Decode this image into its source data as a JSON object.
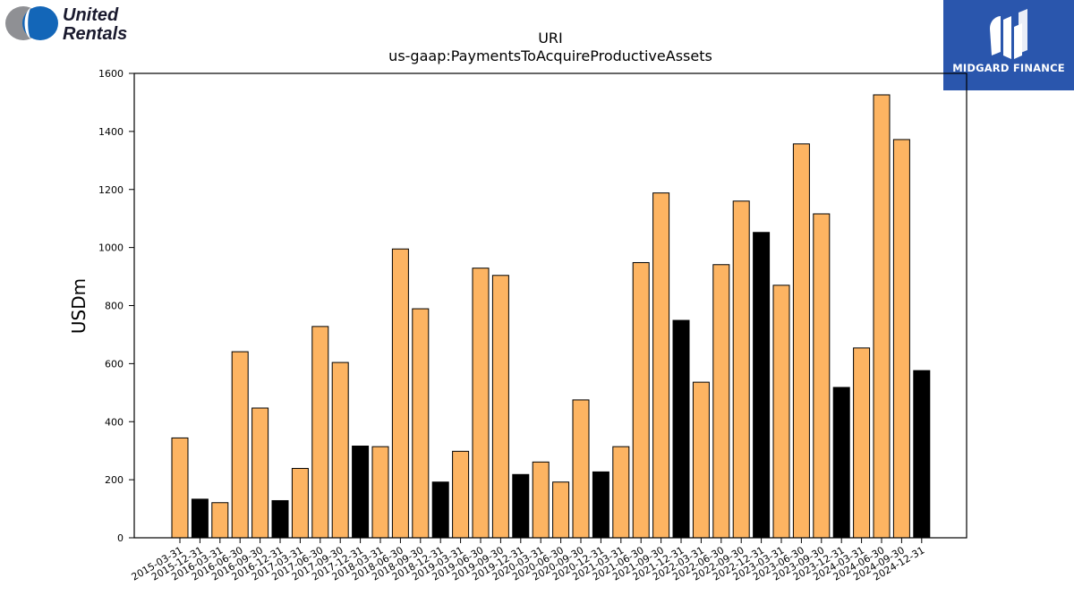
{
  "logos": {
    "left": {
      "line1": "United",
      "line2": "Rentals",
      "colors": {
        "gray": "#8f9094",
        "blue": "#1366b8",
        "text": "#1a1a2e"
      }
    },
    "right": {
      "text": "MIDGARD FINANCE",
      "background": "#2a56ad"
    }
  },
  "chart_data": {
    "type": "bar",
    "title": "URI",
    "subtitle": "us-gaap:PaymentsToAcquireProductiveAssets",
    "xlabel": "",
    "ylabel": "USDm",
    "ylim": [
      0,
      1600
    ],
    "yticks": [
      0,
      200,
      400,
      600,
      800,
      1000,
      1200,
      1400,
      1600
    ],
    "grid": false,
    "legend": "none",
    "colors": {
      "quarter": "#fdb462",
      "year_end": "#000000",
      "edge": "#000000"
    },
    "categories": [
      "2015-03-31",
      "2015-12-31",
      "2016-03-31",
      "2016-06-30",
      "2016-09-30",
      "2016-12-31",
      "2017-03-31",
      "2017-06-30",
      "2017-09-30",
      "2017-12-31",
      "2018-03-31",
      "2018-06-30",
      "2018-09-30",
      "2018-12-31",
      "2019-03-31",
      "2019-06-30",
      "2019-09-30",
      "2019-12-31",
      "2020-03-31",
      "2020-06-30",
      "2020-09-30",
      "2020-12-31",
      "2021-03-31",
      "2021-06-30",
      "2021-09-30",
      "2021-12-31",
      "2022-03-31",
      "2022-06-30",
      "2022-09-30",
      "2022-12-31",
      "2023-03-31",
      "2023-06-30",
      "2023-09-30",
      "2023-12-31",
      "2024-03-31",
      "2024-06-30",
      "2024-09-30",
      "2024-12-31"
    ],
    "values": [
      344,
      133,
      121,
      641,
      447,
      128,
      239,
      728,
      604,
      316,
      314,
      995,
      789,
      192,
      298,
      929,
      904,
      218,
      261,
      192,
      475,
      227,
      314,
      948,
      1188,
      749,
      536,
      941,
      1160,
      1052,
      870,
      1357,
      1116,
      518,
      654,
      1526,
      1372,
      576
    ],
    "highlight": [
      false,
      true,
      false,
      false,
      false,
      true,
      false,
      false,
      false,
      true,
      false,
      false,
      false,
      true,
      false,
      false,
      false,
      true,
      false,
      false,
      false,
      true,
      false,
      false,
      false,
      true,
      false,
      false,
      false,
      true,
      false,
      false,
      false,
      true,
      false,
      false,
      false,
      true
    ]
  }
}
